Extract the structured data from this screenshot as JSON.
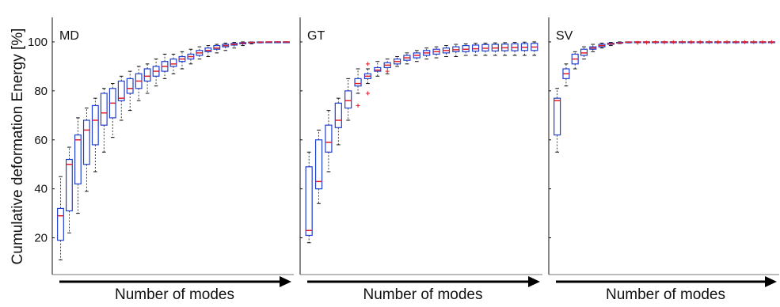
{
  "chart_data": {
    "type": "box",
    "ylabel": "Cumulative deformation Energy [%]",
    "xlabel": "Number of modes",
    "y_ticks": [
      20,
      40,
      60,
      80,
      100
    ],
    "ylim": [
      5,
      110
    ],
    "colors": {
      "box": "#1f3fd1",
      "median": "#e0202a",
      "whisker": "#111111",
      "outlier": "#e0202a",
      "axis": "#111111"
    },
    "panels": [
      {
        "title": "MD",
        "boxes": [
          {
            "lw": 11,
            "q1": 19,
            "med": 29,
            "q3": 32,
            "uw": 45,
            "out": []
          },
          {
            "lw": 22,
            "q1": 31,
            "med": 50,
            "q3": 52,
            "uw": 57,
            "out": []
          },
          {
            "lw": 30,
            "q1": 42,
            "med": 60,
            "q3": 62,
            "uw": 69,
            "out": []
          },
          {
            "lw": 39,
            "q1": 50,
            "med": 64,
            "q3": 68,
            "uw": 73,
            "out": []
          },
          {
            "lw": 47,
            "q1": 58,
            "med": 68,
            "q3": 74,
            "uw": 77,
            "out": []
          },
          {
            "lw": 55,
            "q1": 66,
            "med": 71,
            "q3": 79,
            "uw": 81,
            "out": []
          },
          {
            "lw": 61,
            "q1": 69,
            "med": 75,
            "q3": 81,
            "uw": 83,
            "out": []
          },
          {
            "lw": 68,
            "q1": 76,
            "med": 77,
            "q3": 84,
            "uw": 86,
            "out": []
          },
          {
            "lw": 72,
            "q1": 79,
            "med": 81,
            "q3": 85,
            "uw": 88,
            "out": []
          },
          {
            "lw": 76,
            "q1": 81,
            "med": 84,
            "q3": 87,
            "uw": 90,
            "out": []
          },
          {
            "lw": 79,
            "q1": 84,
            "med": 86,
            "q3": 89,
            "uw": 91,
            "out": []
          },
          {
            "lw": 82,
            "q1": 86,
            "med": 88,
            "q3": 90,
            "uw": 93,
            "out": []
          },
          {
            "lw": 85,
            "q1": 88,
            "med": 90,
            "q3": 92,
            "uw": 95,
            "out": []
          },
          {
            "lw": 87,
            "q1": 90,
            "med": 91,
            "q3": 93,
            "uw": 95,
            "out": []
          },
          {
            "lw": 89,
            "q1": 92,
            "med": 93,
            "q3": 94,
            "uw": 96,
            "out": []
          },
          {
            "lw": 91,
            "q1": 93,
            "med": 94,
            "q3": 95,
            "uw": 97,
            "out": []
          },
          {
            "lw": 93,
            "q1": 94.5,
            "med": 95.5,
            "q3": 96.5,
            "uw": 98,
            "out": []
          },
          {
            "lw": 94,
            "q1": 96,
            "med": 96.5,
            "q3": 97.5,
            "uw": 98.5,
            "out": []
          },
          {
            "lw": 95.5,
            "q1": 97,
            "med": 97.5,
            "q3": 98.5,
            "uw": 99,
            "out": []
          },
          {
            "lw": 96.5,
            "q1": 98,
            "med": 98.5,
            "q3": 99,
            "uw": 99.5,
            "out": []
          },
          {
            "lw": 97.5,
            "q1": 98.7,
            "med": 99,
            "q3": 99.4,
            "uw": 99.8,
            "out": []
          },
          {
            "lw": 98.5,
            "q1": 99.2,
            "med": 99.5,
            "q3": 99.7,
            "uw": 100,
            "out": []
          },
          {
            "lw": 99.2,
            "q1": 99.6,
            "med": 99.8,
            "q3": 99.9,
            "uw": 100,
            "out": []
          },
          {
            "lw": 99.6,
            "q1": 99.8,
            "med": 99.9,
            "q3": 100,
            "uw": 100,
            "out": []
          },
          {
            "lw": 99.8,
            "q1": 99.9,
            "med": 100,
            "q3": 100,
            "uw": 100,
            "out": []
          },
          {
            "lw": 99.9,
            "q1": 100,
            "med": 100,
            "q3": 100,
            "uw": 100,
            "out": []
          },
          {
            "lw": 100,
            "q1": 100,
            "med": 100,
            "q3": 100,
            "uw": 100,
            "out": []
          }
        ]
      },
      {
        "title": "GT",
        "boxes": [
          {
            "lw": 18,
            "q1": 21,
            "med": 23,
            "q3": 49,
            "uw": 55,
            "out": []
          },
          {
            "lw": 34,
            "q1": 40,
            "med": 43,
            "q3": 60,
            "uw": 64,
            "out": []
          },
          {
            "lw": 47,
            "q1": 55,
            "med": 59,
            "q3": 66,
            "uw": 72,
            "out": []
          },
          {
            "lw": 58,
            "q1": 65,
            "med": 68,
            "q3": 75,
            "uw": 77,
            "out": []
          },
          {
            "lw": 68,
            "q1": 73,
            "med": 76,
            "q3": 80,
            "uw": 85,
            "out": []
          },
          {
            "lw": 79,
            "q1": 82,
            "med": 83,
            "q3": 85,
            "uw": 89,
            "out": [
              74
            ]
          },
          {
            "lw": 83,
            "q1": 85,
            "med": 86,
            "q3": 87,
            "uw": 89,
            "out": [
              79,
              91
            ]
          },
          {
            "lw": 86,
            "q1": 88,
            "med": 88.5,
            "q3": 89.5,
            "uw": 92,
            "out": []
          },
          {
            "lw": 87,
            "q1": 89.5,
            "med": 90.5,
            "q3": 91.5,
            "uw": 93,
            "out": [
              88
            ]
          },
          {
            "lw": 90,
            "q1": 91,
            "med": 92,
            "q3": 93,
            "uw": 94,
            "out": []
          },
          {
            "lw": 91,
            "q1": 92.5,
            "med": 93.5,
            "q3": 94.5,
            "uw": 95.5,
            "out": []
          },
          {
            "lw": 92,
            "q1": 93.5,
            "med": 94.5,
            "q3": 95.5,
            "uw": 96.5,
            "out": []
          },
          {
            "lw": 93,
            "q1": 94.5,
            "med": 95.5,
            "q3": 96.5,
            "uw": 97.5,
            "out": []
          },
          {
            "lw": 93.5,
            "q1": 95,
            "med": 96,
            "q3": 97,
            "uw": 98,
            "out": []
          },
          {
            "lw": 94,
            "q1": 95.5,
            "med": 96.5,
            "q3": 97.5,
            "uw": 98.5,
            "out": []
          },
          {
            "lw": 94,
            "q1": 96,
            "med": 96.8,
            "q3": 98,
            "uw": 99,
            "out": []
          },
          {
            "lw": 94.5,
            "q1": 96,
            "med": 97,
            "q3": 98.5,
            "uw": 99.2,
            "out": []
          },
          {
            "lw": 94.5,
            "q1": 96.2,
            "med": 97.2,
            "q3": 98.7,
            "uw": 99.4,
            "out": []
          },
          {
            "lw": 94.5,
            "q1": 96.3,
            "med": 97.4,
            "q3": 98.9,
            "uw": 99.5,
            "out": []
          },
          {
            "lw": 94.5,
            "q1": 96.3,
            "med": 97.5,
            "q3": 99,
            "uw": 99.6,
            "out": []
          },
          {
            "lw": 94.5,
            "q1": 96.4,
            "med": 97.6,
            "q3": 99.1,
            "uw": 99.7,
            "out": []
          },
          {
            "lw": 94.5,
            "q1": 96.4,
            "med": 97.7,
            "q3": 99.2,
            "uw": 99.8,
            "out": []
          },
          {
            "lw": 94.5,
            "q1": 96.5,
            "med": 97.8,
            "q3": 99.3,
            "uw": 99.9,
            "out": []
          },
          {
            "lw": 94.5,
            "q1": 96.5,
            "med": 97.9,
            "q3": 99.4,
            "uw": 100,
            "out": []
          }
        ]
      },
      {
        "title": "SV",
        "boxes": [
          {
            "lw": 55,
            "q1": 62,
            "med": 76,
            "q3": 77,
            "uw": 81,
            "out": []
          },
          {
            "lw": 82,
            "q1": 85,
            "med": 87,
            "q3": 89,
            "uw": 91,
            "out": []
          },
          {
            "lw": 89,
            "q1": 91,
            "med": 93,
            "q3": 95,
            "uw": 96,
            "out": []
          },
          {
            "lw": 93,
            "q1": 94.5,
            "med": 95.5,
            "q3": 97,
            "uw": 98,
            "out": []
          },
          {
            "lw": 96,
            "q1": 97,
            "med": 97.5,
            "q3": 98,
            "uw": 99,
            "out": []
          },
          {
            "lw": 97.5,
            "q1": 98,
            "med": 98.5,
            "q3": 99,
            "uw": 99.5,
            "out": []
          },
          {
            "lw": 98.5,
            "q1": 99,
            "med": 99.2,
            "q3": 99.5,
            "uw": 99.8,
            "out": []
          },
          {
            "lw": 99.3,
            "q1": 99.5,
            "med": 99.6,
            "q3": 99.8,
            "uw": 100,
            "out": []
          },
          {
            "lw": 99.6,
            "q1": 99.8,
            "med": 99.9,
            "q3": 100,
            "uw": 100,
            "out": []
          },
          {
            "lw": 100,
            "q1": 100,
            "med": 100,
            "q3": 100,
            "uw": 100,
            "out": [
              99.6
            ]
          },
          {
            "lw": 100,
            "q1": 100,
            "med": 100,
            "q3": 100,
            "uw": 100,
            "out": [
              99.7
            ]
          },
          {
            "lw": 100,
            "q1": 100,
            "med": 100,
            "q3": 100,
            "uw": 100,
            "out": [
              99.8
            ]
          },
          {
            "lw": 100,
            "q1": 100,
            "med": 100,
            "q3": 100,
            "uw": 100,
            "out": [
              99.8
            ]
          },
          {
            "lw": 100,
            "q1": 100,
            "med": 100,
            "q3": 100,
            "uw": 100,
            "out": [
              99.9
            ]
          },
          {
            "lw": 100,
            "q1": 100,
            "med": 100,
            "q3": 100,
            "uw": 100,
            "out": [
              99.9
            ]
          },
          {
            "lw": 100,
            "q1": 100,
            "med": 100,
            "q3": 100,
            "uw": 100,
            "out": [
              99.9
            ]
          },
          {
            "lw": 100,
            "q1": 100,
            "med": 100,
            "q3": 100,
            "uw": 100,
            "out": [
              99.9
            ]
          },
          {
            "lw": 100,
            "q1": 100,
            "med": 100,
            "q3": 100,
            "uw": 100,
            "out": [
              99.9
            ]
          },
          {
            "lw": 100,
            "q1": 100,
            "med": 100,
            "q3": 100,
            "uw": 100,
            "out": [
              99.9
            ]
          },
          {
            "lw": 100,
            "q1": 100,
            "med": 100,
            "q3": 100,
            "uw": 100,
            "out": [
              99.9
            ]
          },
          {
            "lw": 100,
            "q1": 100,
            "med": 100,
            "q3": 100,
            "uw": 100,
            "out": [
              99.9
            ]
          },
          {
            "lw": 100,
            "q1": 100,
            "med": 100,
            "q3": 100,
            "uw": 100,
            "out": [
              99.9
            ]
          },
          {
            "lw": 100,
            "q1": 100,
            "med": 100,
            "q3": 100,
            "uw": 100,
            "out": [
              99.9
            ]
          },
          {
            "lw": 100,
            "q1": 100,
            "med": 100,
            "q3": 100,
            "uw": 100,
            "out": [
              99.9
            ]
          },
          {
            "lw": 100,
            "q1": 100,
            "med": 100,
            "q3": 100,
            "uw": 100,
            "out": [
              99.9
            ]
          }
        ]
      }
    ]
  }
}
